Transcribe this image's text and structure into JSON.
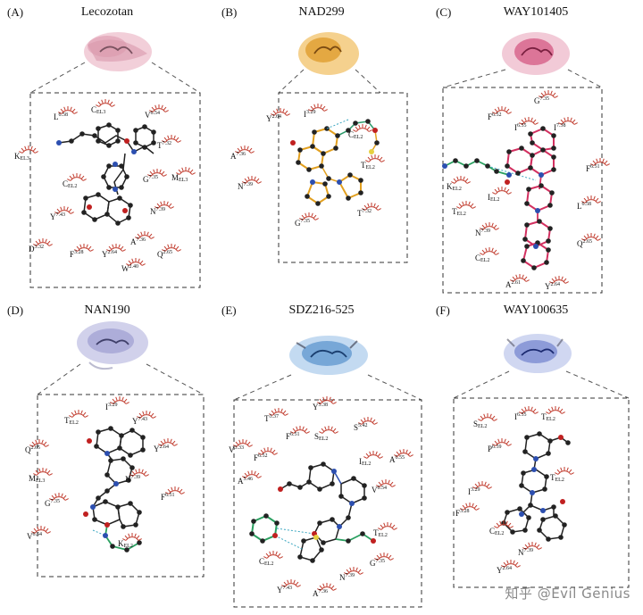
{
  "panels": [
    {
      "letter": "(A)",
      "title": "Lecozotan",
      "color": "#e8a7b7",
      "residues": [
        {
          "name": "L",
          "sup": "6.58",
          "x": 60,
          "y": 128
        },
        {
          "name": "C",
          "sub": "EL3",
          "x": 102,
          "y": 120
        },
        {
          "name": "V",
          "sup": "6.54",
          "x": 162,
          "y": 126
        },
        {
          "name": "K",
          "sub": "EL3",
          "x": 16,
          "y": 172
        },
        {
          "name": "T",
          "sup": "7.32",
          "x": 176,
          "y": 160
        },
        {
          "name": "C",
          "sub": "EL2",
          "x": 70,
          "y": 203
        },
        {
          "name": "G",
          "sup": "7.35",
          "x": 160,
          "y": 198
        },
        {
          "name": "M",
          "sub": "EL3",
          "x": 192,
          "y": 196
        },
        {
          "name": "N",
          "sup": "7.39",
          "x": 168,
          "y": 234
        },
        {
          "name": "Y",
          "sup": "7.43",
          "x": 56,
          "y": 240
        },
        {
          "name": "D",
          "sup": "3.32",
          "x": 32,
          "y": 276
        },
        {
          "name": "F",
          "sup": "3.28",
          "x": 78,
          "y": 282
        },
        {
          "name": "Y",
          "sup": "2.64",
          "x": 114,
          "y": 282
        },
        {
          "name": "A",
          "sup": "7.36",
          "x": 146,
          "y": 268
        },
        {
          "name": "Q",
          "sup": "2.65",
          "x": 176,
          "y": 282
        },
        {
          "name": "W",
          "sup": "2.40",
          "x": 136,
          "y": 298
        }
      ]
    },
    {
      "letter": "(B)",
      "title": "NAD299",
      "color": "#e6a93a",
      "residues": [
        {
          "name": "Y",
          "sup": "2.64",
          "x": 58,
          "y": 130
        },
        {
          "name": "I",
          "sup": "3.29",
          "x": 100,
          "y": 125
        },
        {
          "name": "C",
          "sub": "EL2",
          "x": 150,
          "y": 148
        },
        {
          "name": "A",
          "sup": "7.36",
          "x": 18,
          "y": 172
        },
        {
          "name": "T",
          "sub": "EL2",
          "x": 164,
          "y": 182
        },
        {
          "name": "N",
          "sup": "7.39",
          "x": 26,
          "y": 206
        },
        {
          "name": "G",
          "sup": "7.35",
          "x": 90,
          "y": 247
        },
        {
          "name": "T",
          "sup": "7.32",
          "x": 160,
          "y": 236
        }
      ]
    },
    {
      "letter": "(C)",
      "title": "WAY101405",
      "color": "#d9577e",
      "residues": [
        {
          "name": "G",
          "sup": "7.35",
          "x": 118,
          "y": 110
        },
        {
          "name": "F",
          "sup": "6.52",
          "x": 66,
          "y": 128
        },
        {
          "name": "I",
          "sup": "6.55",
          "x": 96,
          "y": 140
        },
        {
          "name": "I",
          "sup": "7.38",
          "x": 140,
          "y": 140
        },
        {
          "name": "F",
          "sup": "6.51",
          "x": 176,
          "y": 186
        },
        {
          "name": "K",
          "sub": "EL2",
          "x": 20,
          "y": 206
        },
        {
          "name": "I",
          "sub": "EL2",
          "x": 66,
          "y": 218
        },
        {
          "name": "T",
          "sub": "EL2",
          "x": 26,
          "y": 234
        },
        {
          "name": "L",
          "sup": "6.58",
          "x": 166,
          "y": 228
        },
        {
          "name": "N",
          "sup": "7.39",
          "x": 52,
          "y": 258
        },
        {
          "name": "Q",
          "sup": "2.65",
          "x": 166,
          "y": 270
        },
        {
          "name": "C",
          "sub": "EL2",
          "x": 52,
          "y": 286
        },
        {
          "name": "A",
          "sup": "2.61",
          "x": 86,
          "y": 316
        },
        {
          "name": "Y",
          "sup": "2.64",
          "x": 130,
          "y": 318
        }
      ]
    },
    {
      "letter": "(D)",
      "title": "NAN190",
      "color": "#a9a9d8",
      "residues": [
        {
          "name": "I",
          "sup": "3.29",
          "x": 118,
          "y": 117
        },
        {
          "name": "T",
          "sub": "EL2",
          "x": 72,
          "y": 132
        },
        {
          "name": "Y",
          "sup": "7.43",
          "x": 148,
          "y": 133
        },
        {
          "name": "Q",
          "sup": "2.65",
          "x": 28,
          "y": 165
        },
        {
          "name": "Y",
          "sup": "2.64",
          "x": 172,
          "y": 164
        },
        {
          "name": "M",
          "sub": "EL3",
          "x": 32,
          "y": 197
        },
        {
          "name": "N",
          "sup": "7.39",
          "x": 140,
          "y": 198
        },
        {
          "name": "G",
          "sup": "7.35",
          "x": 50,
          "y": 225
        },
        {
          "name": "F",
          "sup": "6.51",
          "x": 180,
          "y": 218
        },
        {
          "name": "V",
          "sup": "6.54",
          "x": 30,
          "y": 262
        },
        {
          "name": "K",
          "sub": "EL2",
          "x": 132,
          "y": 270
        }
      ]
    },
    {
      "letter": "(E)",
      "title": "SDZ216-525",
      "color": "#5d95cf",
      "residues": [
        {
          "name": "Y",
          "sup": "5.38",
          "x": 110,
          "y": 117
        },
        {
          "name": "T",
          "sup": "3.37",
          "x": 56,
          "y": 130
        },
        {
          "name": "F",
          "sup": "6.51",
          "x": 80,
          "y": 150
        },
        {
          "name": "S",
          "sub": "EL2",
          "x": 112,
          "y": 150
        },
        {
          "name": "S",
          "sup": "5.42",
          "x": 156,
          "y": 140
        },
        {
          "name": "V",
          "sup": "3.33",
          "x": 16,
          "y": 165
        },
        {
          "name": "F",
          "sup": "6.52",
          "x": 44,
          "y": 174
        },
        {
          "name": "I",
          "sub": "EL2",
          "x": 162,
          "y": 178
        },
        {
          "name": "A",
          "sup": "6.55",
          "x": 196,
          "y": 176
        },
        {
          "name": "A",
          "sup": "5.46",
          "x": 26,
          "y": 200
        },
        {
          "name": "V",
          "sup": "6.54",
          "x": 176,
          "y": 210
        },
        {
          "name": "T",
          "sub": "EL2",
          "x": 178,
          "y": 258
        },
        {
          "name": "C",
          "sub": "EL2",
          "x": 50,
          "y": 290
        },
        {
          "name": "G",
          "sup": "7.35",
          "x": 174,
          "y": 292
        },
        {
          "name": "N",
          "sup": "7.39",
          "x": 140,
          "y": 308
        },
        {
          "name": "Y",
          "sup": "7.43",
          "x": 70,
          "y": 322
        },
        {
          "name": "A",
          "sup": "7.36",
          "x": 110,
          "y": 326
        }
      ]
    },
    {
      "letter": "(F)",
      "title": "WAY100635",
      "color": "#7e8fd0",
      "residues": [
        {
          "name": "I",
          "sup": "6.55",
          "x": 96,
          "y": 128
        },
        {
          "name": "T",
          "sub": "EL2",
          "x": 126,
          "y": 128
        },
        {
          "name": "S",
          "sub": "EL2",
          "x": 50,
          "y": 136
        },
        {
          "name": "P",
          "sup": "6.59",
          "x": 66,
          "y": 164
        },
        {
          "name": "T",
          "sub": "EL2",
          "x": 136,
          "y": 196
        },
        {
          "name": "I",
          "sup": "3.29",
          "x": 44,
          "y": 212
        },
        {
          "name": "F",
          "sup": "3.28",
          "x": 30,
          "y": 236
        },
        {
          "name": "C",
          "sub": "EL2",
          "x": 68,
          "y": 256
        },
        {
          "name": "N",
          "sup": "7.39",
          "x": 100,
          "y": 280
        },
        {
          "name": "Y",
          "sup": "2.64",
          "x": 76,
          "y": 300
        }
      ]
    }
  ],
  "watermark": "知乎 @Evil Genius"
}
